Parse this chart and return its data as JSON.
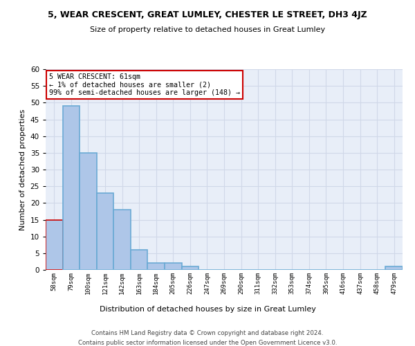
{
  "title": "5, WEAR CRESCENT, GREAT LUMLEY, CHESTER LE STREET, DH3 4JZ",
  "subtitle": "Size of property relative to detached houses in Great Lumley",
  "xlabel": "Distribution of detached houses by size in Great Lumley",
  "ylabel": "Number of detached properties",
  "categories": [
    "58sqm",
    "79sqm",
    "100sqm",
    "121sqm",
    "142sqm",
    "163sqm",
    "184sqm",
    "205sqm",
    "226sqm",
    "247sqm",
    "269sqm",
    "290sqm",
    "311sqm",
    "332sqm",
    "353sqm",
    "374sqm",
    "395sqm",
    "416sqm",
    "437sqm",
    "458sqm",
    "479sqm"
  ],
  "values": [
    15,
    49,
    35,
    23,
    18,
    6,
    2,
    2,
    1,
    0,
    0,
    0,
    0,
    0,
    0,
    0,
    0,
    0,
    0,
    0,
    1
  ],
  "bar_color": "#aec6e8",
  "bar_edge_color": "#6aaad4",
  "highlight_color": "#cc0000",
  "ylim": [
    0,
    60
  ],
  "yticks": [
    0,
    5,
    10,
    15,
    20,
    25,
    30,
    35,
    40,
    45,
    50,
    55,
    60
  ],
  "annotation_text": "5 WEAR CRESCENT: 61sqm\n← 1% of detached houses are smaller (2)\n99% of semi-detached houses are larger (148) →",
  "annotation_box_facecolor": "#ffffff",
  "annotation_box_edgecolor": "#cc0000",
  "grid_color": "#d0d8e8",
  "background_color": "#e8eef8",
  "footer_line1": "Contains HM Land Registry data © Crown copyright and database right 2024.",
  "footer_line2": "Contains public sector information licensed under the Open Government Licence v3.0."
}
